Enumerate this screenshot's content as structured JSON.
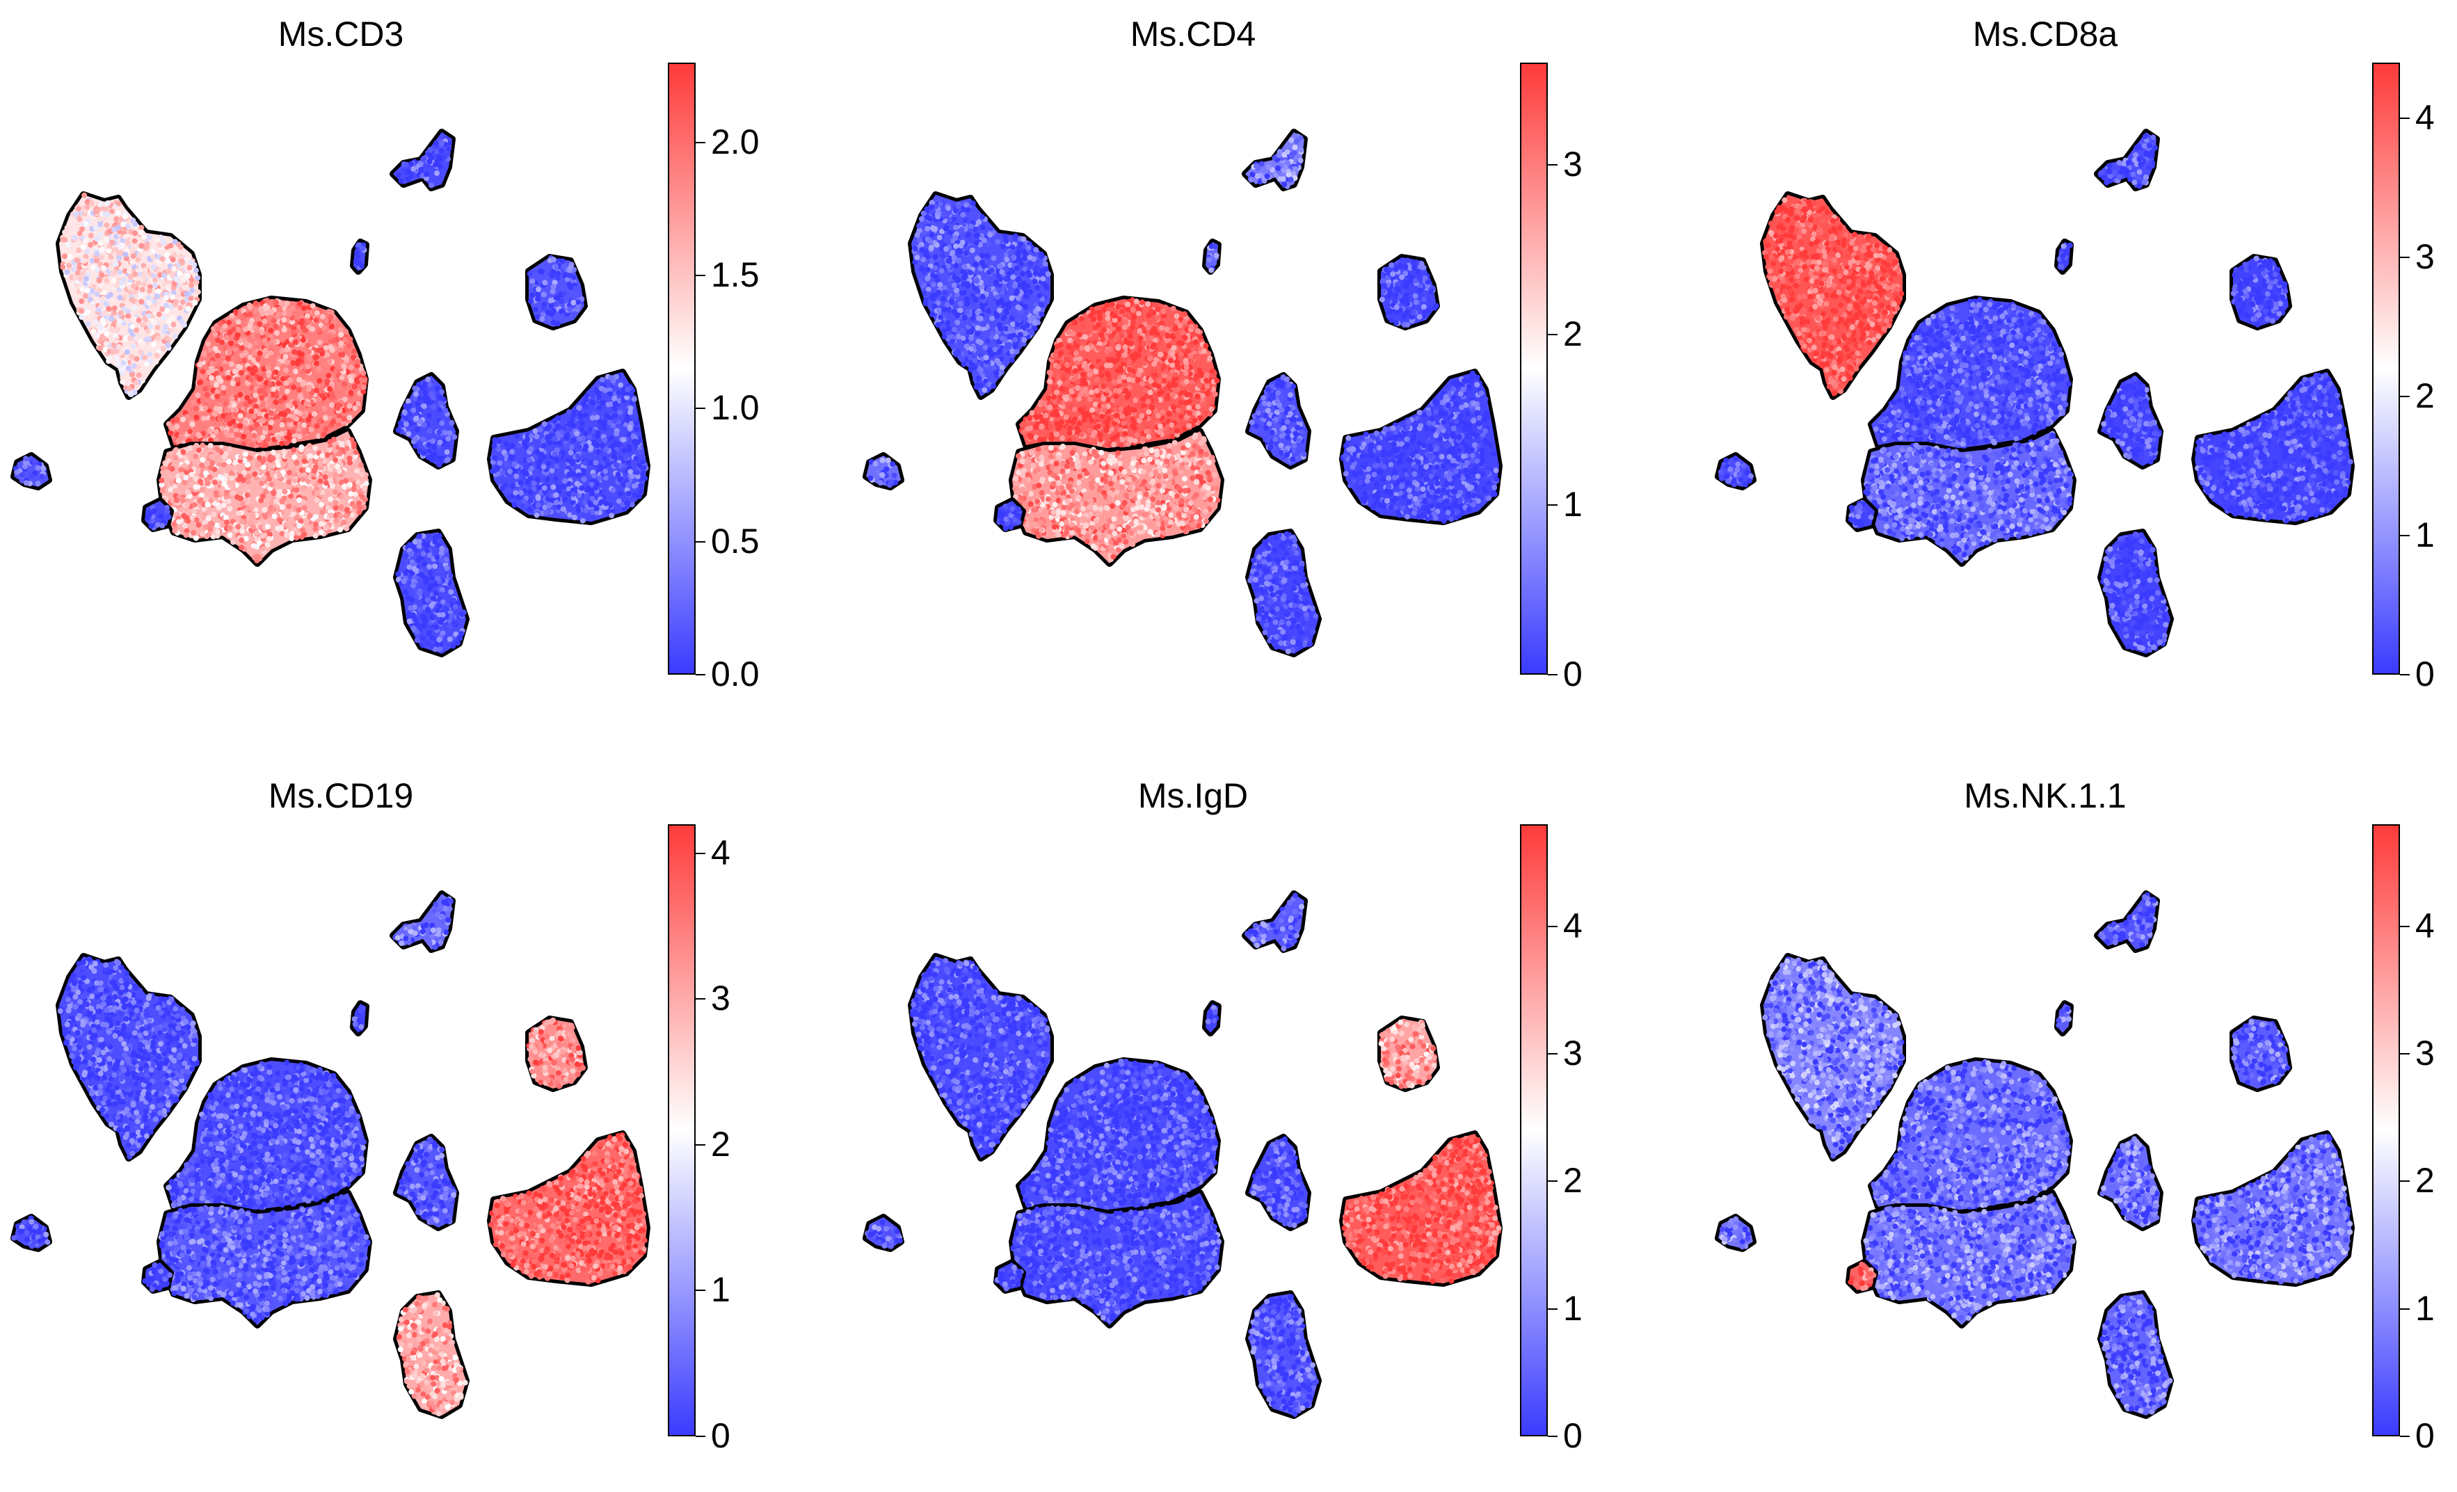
{
  "colors": {
    "low": "#3b3bff",
    "mid": "#ffffff",
    "high": "#ff3b3b",
    "outline": "#000000"
  },
  "chart_data": [
    {
      "type": "scatter",
      "title": "Ms.CD3",
      "colorbar": {
        "min": 0.0,
        "max": 2.3,
        "ticks": [
          "0.0",
          "0.5",
          "1.0",
          "1.5",
          "2.0"
        ],
        "tick_values": [
          0.0,
          0.5,
          1.0,
          1.5,
          2.0
        ]
      },
      "cluster_levels": {
        "A": 1.3,
        "B": 1.9,
        "C": 1.6,
        "D": 0.1,
        "E": 0.15,
        "F": 0.1,
        "G": 0.1,
        "H": 0.1,
        "I": 0.1,
        "J": 0.15,
        "K": 0.1
      }
    },
    {
      "type": "scatter",
      "title": "Ms.CD4",
      "colorbar": {
        "min": 0,
        "max": 3.6,
        "ticks": [
          "0",
          "1",
          "2",
          "3"
        ],
        "tick_values": [
          0,
          1,
          2,
          3
        ]
      },
      "cluster_levels": {
        "A": 0.2,
        "B": 3.3,
        "C": 2.7,
        "D": 0.1,
        "E": 0.1,
        "F": 0.1,
        "G": 0.2,
        "H": 0.6,
        "I": 0.4,
        "J": 0.5,
        "K": 0.1
      }
    },
    {
      "type": "scatter",
      "title": "Ms.CD8a",
      "colorbar": {
        "min": 0,
        "max": 4.4,
        "ticks": [
          "0",
          "1",
          "2",
          "3",
          "4"
        ],
        "tick_values": [
          0,
          1,
          2,
          3,
          4
        ]
      },
      "cluster_levels": {
        "A": 4.1,
        "B": 0.2,
        "C": 0.5,
        "D": 0.1,
        "E": 0.1,
        "F": 0.1,
        "G": 0.1,
        "H": 0.2,
        "I": 0.1,
        "J": 0.2,
        "K": 0.1
      }
    },
    {
      "type": "scatter",
      "title": "Ms.CD19",
      "colorbar": {
        "min": 0,
        "max": 4.2,
        "ticks": [
          "0",
          "1",
          "2",
          "3",
          "4"
        ],
        "tick_values": [
          0,
          1,
          2,
          3,
          4
        ]
      },
      "cluster_levels": {
        "A": 0.2,
        "B": 0.2,
        "C": 0.3,
        "D": 3.7,
        "E": 3.3,
        "F": 3.0,
        "G": 0.3,
        "H": 0.5,
        "I": 0.1,
        "J": 0.2,
        "K": 0.1
      }
    },
    {
      "type": "scatter",
      "title": "Ms.IgD",
      "colorbar": {
        "min": 0,
        "max": 4.8,
        "ticks": [
          "0",
          "1",
          "2",
          "3",
          "4"
        ],
        "tick_values": [
          0,
          1,
          2,
          3,
          4
        ]
      },
      "cluster_levels": {
        "A": 0.2,
        "B": 0.2,
        "C": 0.2,
        "D": 4.4,
        "E": 3.5,
        "F": 0.3,
        "G": 0.2,
        "H": 0.4,
        "I": 0.1,
        "J": 0.3,
        "K": 0.1
      }
    },
    {
      "type": "scatter",
      "title": "Ms.NK.1.1",
      "colorbar": {
        "min": 0,
        "max": 4.8,
        "ticks": [
          "0",
          "1",
          "2",
          "3",
          "4"
        ],
        "tick_values": [
          0,
          1,
          2,
          3,
          4
        ]
      },
      "cluster_levels": {
        "A": 0.9,
        "B": 0.6,
        "C": 0.7,
        "D": 0.7,
        "E": 0.4,
        "F": 0.5,
        "G": 0.6,
        "H": 0.3,
        "I": 0.4,
        "J": 0.7,
        "K": 4.3
      }
    }
  ]
}
